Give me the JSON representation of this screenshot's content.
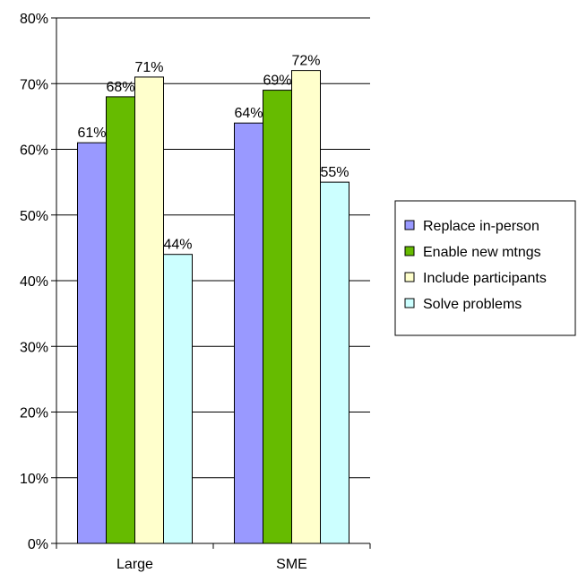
{
  "chart_data": {
    "type": "bar",
    "title": "",
    "xlabel": "",
    "ylabel": "",
    "categories": [
      "Large",
      "SME"
    ],
    "series": [
      {
        "name": "Replace in-person",
        "color": "#9999ff",
        "values": [
          61,
          64
        ],
        "labels": [
          "61%",
          "64%"
        ]
      },
      {
        "name": "Enable new mtngs",
        "color": "#66bb00",
        "values": [
          68,
          69
        ],
        "labels": [
          "68%",
          "69%"
        ]
      },
      {
        "name": "Include participants",
        "color": "#ffffcc",
        "values": [
          71,
          72
        ],
        "labels": [
          "71%",
          "72%"
        ]
      },
      {
        "name": "Solve problems",
        "color": "#ccffff",
        "values": [
          44,
          55
        ],
        "labels": [
          "44%",
          "55%"
        ]
      }
    ],
    "ylim": [
      0,
      80
    ],
    "yticks": [
      0,
      10,
      20,
      30,
      40,
      50,
      60,
      70,
      80
    ],
    "ytick_labels": [
      "0%",
      "10%",
      "20%",
      "30%",
      "40%",
      "50%",
      "60%",
      "70%",
      "80%"
    ],
    "grid": true,
    "legend_position": "right"
  }
}
